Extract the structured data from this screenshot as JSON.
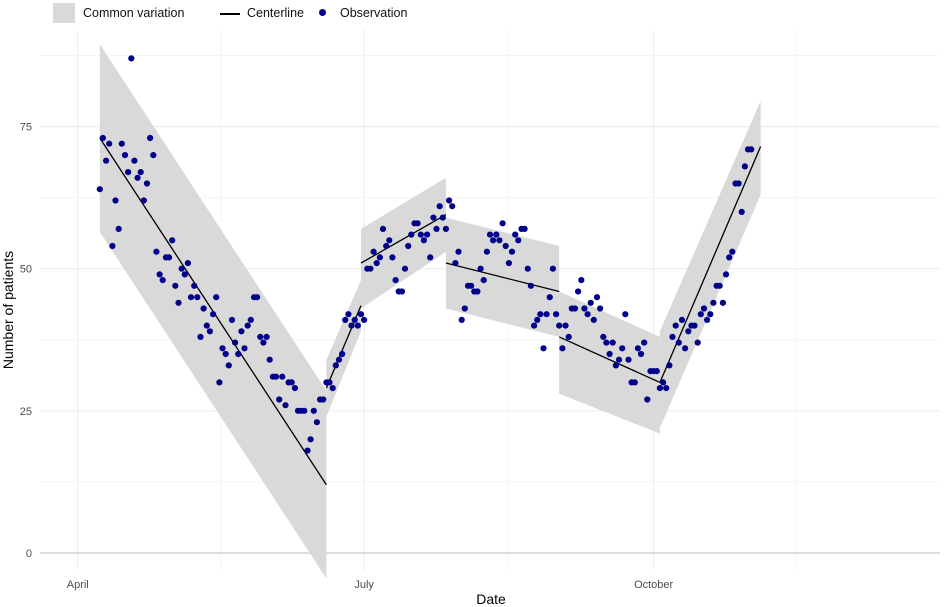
{
  "legend": {
    "band_label": "Common variation",
    "line_label": "Centerline",
    "point_label": "Observation"
  },
  "colors": {
    "band": "#d9d9d9",
    "centerline": "#000000",
    "observation": "#00008b",
    "grid": "#ebebeb",
    "baseline": "#bdbdbd"
  },
  "chart_data": {
    "type": "scatter",
    "xlabel": "Date",
    "ylabel": "Number of patients",
    "x_axis_type": "date",
    "xlim": [
      "2020-03-20",
      "2020-12-31"
    ],
    "ylim": [
      -3,
      92
    ],
    "x_ticks": [
      {
        "date": "2020-04-01",
        "label": "April"
      },
      {
        "date": "2020-07-01",
        "label": "July"
      },
      {
        "date": "2020-10-01",
        "label": "October"
      }
    ],
    "y_ticks": [
      0,
      25,
      50,
      75
    ],
    "grid": true,
    "legend_position": "top-left",
    "segments": [
      {
        "start": "2020-04-08",
        "end": "2020-06-19",
        "center": [
          73,
          12
        ],
        "upper": [
          89.5,
          28.5
        ],
        "lower": [
          56.5,
          -4.5
        ]
      },
      {
        "start": "2020-06-19",
        "end": "2020-06-30",
        "center": [
          29,
          43.5
        ],
        "upper": [
          34,
          48
        ],
        "lower": [
          24,
          39
        ]
      },
      {
        "start": "2020-06-30",
        "end": "2020-07-27",
        "center": [
          51,
          59.5
        ],
        "upper": [
          57,
          66
        ],
        "lower": [
          43,
          53
        ]
      },
      {
        "start": "2020-07-27",
        "end": "2020-09-01",
        "center": [
          51,
          46
        ],
        "upper": [
          59,
          54
        ],
        "lower": [
          43,
          38
        ]
      },
      {
        "start": "2020-09-01",
        "end": "2020-10-03",
        "center": [
          38,
          30
        ],
        "upper": [
          46,
          38
        ],
        "lower": [
          28,
          21
        ]
      },
      {
        "start": "2020-10-03",
        "end": "2020-11-04",
        "center": [
          30,
          71.5
        ],
        "upper": [
          39,
          79.5
        ],
        "lower": [
          22,
          63
        ]
      }
    ],
    "series": [
      {
        "name": "Observation",
        "start_date": "2020-04-08",
        "values": [
          64,
          73,
          69,
          72,
          54,
          62,
          57,
          72,
          70,
          67,
          87,
          69,
          66,
          67,
          62,
          65,
          73,
          70,
          53,
          49,
          48,
          52,
          52,
          55,
          47,
          44,
          50,
          49,
          51,
          45,
          47,
          45,
          38,
          43,
          40,
          39,
          42,
          45,
          30,
          36,
          35,
          33,
          41,
          37,
          35,
          39,
          36,
          40,
          41,
          45,
          45,
          38,
          37,
          38,
          34,
          31,
          31,
          27,
          31,
          26,
          30,
          30,
          29,
          25,
          25,
          25,
          18,
          20,
          25,
          23,
          27,
          27,
          30,
          30,
          29,
          33,
          34,
          35,
          41,
          42,
          40,
          41,
          40,
          42,
          41,
          50,
          50,
          53,
          51,
          52,
          57,
          54,
          55,
          52,
          48,
          46,
          46,
          50,
          54,
          56,
          58,
          58,
          56,
          55,
          56,
          52,
          59,
          57,
          61,
          59,
          57,
          62,
          61,
          51,
          53,
          41,
          43,
          47,
          47,
          46,
          46,
          50,
          48,
          53,
          56,
          55,
          56,
          55,
          58,
          54,
          51,
          53,
          56,
          55,
          57,
          57,
          50,
          47,
          40,
          41,
          42,
          36,
          42,
          45,
          50,
          42,
          40,
          36,
          40,
          38,
          43,
          43,
          46,
          48,
          43,
          42,
          44,
          41,
          45,
          43,
          38,
          37,
          35,
          37,
          33,
          34,
          36,
          42,
          34,
          30,
          30,
          36,
          35,
          37,
          27,
          32,
          32,
          32,
          29,
          30,
          29,
          33,
          38,
          40,
          37,
          41,
          36,
          39,
          40,
          40,
          37,
          42,
          43,
          41,
          42,
          44,
          47,
          47,
          44,
          49,
          52,
          53,
          65,
          65,
          60,
          68,
          71,
          71
        ]
      }
    ]
  }
}
